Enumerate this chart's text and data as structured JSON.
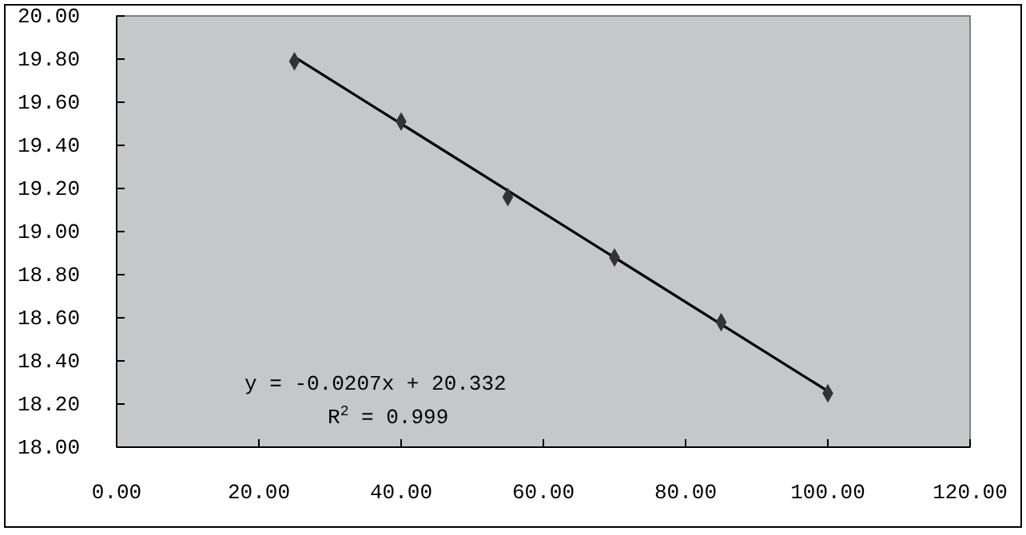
{
  "chart_data": {
    "type": "scatter",
    "x": [
      25,
      40,
      55,
      70,
      85,
      100
    ],
    "series": [
      {
        "color": "#333333",
        "marker": "diamond",
        "values": [
          19.79,
          19.51,
          19.16,
          18.88,
          18.58,
          18.25
        ]
      },
      {
        "type": "line",
        "color": "#000000",
        "marker": "none",
        "line_style": "solid",
        "x": [
          25,
          100
        ],
        "values": [
          19.81,
          18.26
        ]
      }
    ],
    "xlim": [
      0,
      120
    ],
    "xticks": [
      {
        "value": 0,
        "label": "0.00"
      },
      {
        "value": 20,
        "label": "20.00"
      },
      {
        "value": 40,
        "label": "40.00"
      },
      {
        "value": 60,
        "label": "60.00"
      },
      {
        "value": 80,
        "label": "80.00"
      },
      {
        "value": 100,
        "label": "100.00"
      },
      {
        "value": 120,
        "label": "120.00"
      }
    ],
    "ylim": [
      18,
      20
    ],
    "yticks": [
      {
        "value": 18,
        "label": "18.00"
      },
      {
        "value": 18.2,
        "label": "18.20"
      },
      {
        "value": 18.4,
        "label": "18.40"
      },
      {
        "value": 18.6,
        "label": "18.60"
      },
      {
        "value": 18.8,
        "label": "18.80"
      },
      {
        "value": 19,
        "label": "19.00"
      },
      {
        "value": 19.2,
        "label": "19.20"
      },
      {
        "value": 19.4,
        "label": "19.40"
      },
      {
        "value": 19.6,
        "label": "19.60"
      },
      {
        "value": 19.8,
        "label": "19.80"
      },
      {
        "value": 20,
        "label": "20.00"
      }
    ],
    "grid": false,
    "annotations": [
      "y = -0.0207x + 20.332",
      "R$^{2}$ = 0.999"
    ]
  }
}
